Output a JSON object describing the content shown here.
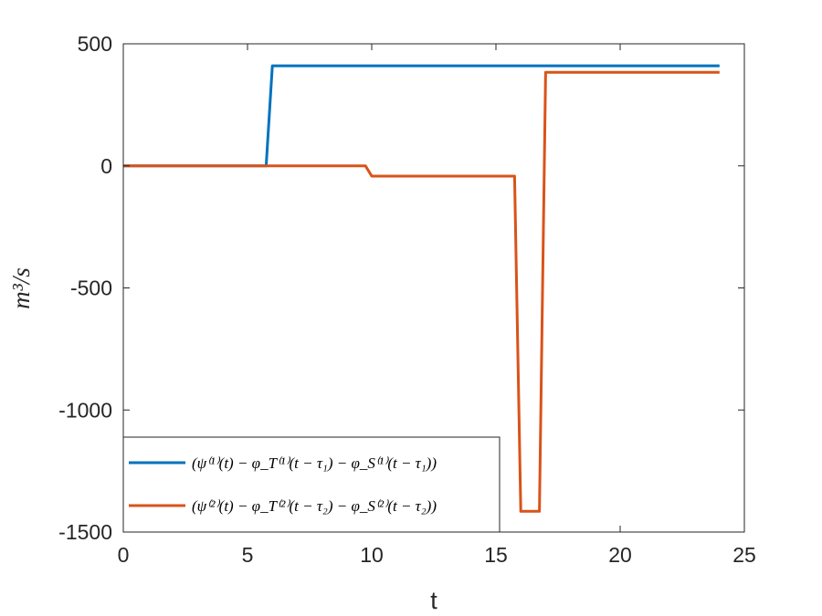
{
  "chart_data": {
    "type": "line",
    "title": "",
    "xlabel": "t",
    "ylabel": "m³/s",
    "xlim": [
      0,
      25
    ],
    "ylim": [
      -1500,
      500
    ],
    "xticks": [
      "0",
      "5",
      "10",
      "15",
      "20",
      "25"
    ],
    "yticks": [
      "500",
      "0",
      "-500",
      "-1000",
      "-1500"
    ],
    "grid": false,
    "legend_position": "bottom-left",
    "series": [
      {
        "name": "(ψ⁽¹⁾(t) − φ_T⁽¹⁾(t − τ₁) − φ_S⁽¹⁾(t − τ₁))",
        "color": "#0072BD",
        "x": [
          0,
          5.75,
          6.0,
          24
        ],
        "y": [
          0,
          0,
          410,
          410
        ]
      },
      {
        "name": "(ψ⁽²⁾(t) − φ_T⁽²⁾(t − τ₂) − φ_S⁽²⁾(t − τ₂))",
        "color": "#D95319",
        "x": [
          0,
          9.75,
          10.0,
          15.75,
          16.0,
          16.75,
          17.0,
          24
        ],
        "y": [
          0,
          0,
          -42,
          -42,
          -1415,
          -1415,
          383,
          383
        ]
      }
    ]
  }
}
